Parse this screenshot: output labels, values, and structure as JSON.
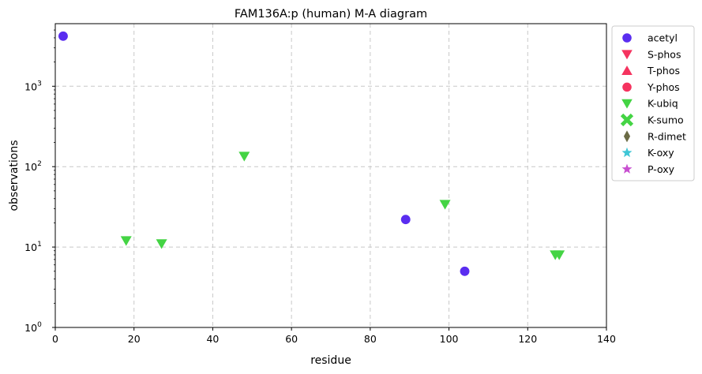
{
  "chart_data": {
    "type": "scatter",
    "title": "FAM136A:p (human) M-A diagram",
    "xlabel": "residue",
    "ylabel": "observations",
    "xlim": [
      0,
      140
    ],
    "ylim": [
      1,
      6000
    ],
    "yscale": "log",
    "grid": true,
    "legend_position": "outside-right",
    "x_ticks": [
      {
        "value": 0,
        "label": "0"
      },
      {
        "value": 20,
        "label": "20"
      },
      {
        "value": 40,
        "label": "40"
      },
      {
        "value": 60,
        "label": "60"
      },
      {
        "value": 80,
        "label": "80"
      },
      {
        "value": 100,
        "label": "100"
      },
      {
        "value": 120,
        "label": "120"
      },
      {
        "value": 140,
        "label": "140"
      }
    ],
    "y_ticks": [
      {
        "value": 1,
        "base": "10",
        "exp": "0"
      },
      {
        "value": 10,
        "base": "10",
        "exp": "1"
      },
      {
        "value": 100,
        "base": "10",
        "exp": "2"
      },
      {
        "value": 1000,
        "base": "10",
        "exp": "3"
      }
    ],
    "series": [
      {
        "name": "acetyl",
        "marker": "circle",
        "color": "#5a2df0",
        "points": [
          {
            "x": 2,
            "y": 4200
          },
          {
            "x": 89,
            "y": 22
          },
          {
            "x": 104,
            "y": 5
          }
        ]
      },
      {
        "name": "S-phos",
        "marker": "triangle-down",
        "color": "#f5335f",
        "points": []
      },
      {
        "name": "T-phos",
        "marker": "triangle-up",
        "color": "#f5335f",
        "points": []
      },
      {
        "name": "Y-phos",
        "marker": "circle",
        "color": "#f5335f",
        "points": []
      },
      {
        "name": "K-ubiq",
        "marker": "triangle-down",
        "color": "#44d444",
        "points": [
          {
            "x": 18,
            "y": 12
          },
          {
            "x": 27,
            "y": 11
          },
          {
            "x": 48,
            "y": 135
          },
          {
            "x": 99,
            "y": 34
          },
          {
            "x": 127,
            "y": 8
          },
          {
            "x": 128,
            "y": 8
          }
        ]
      },
      {
        "name": "K-sumo",
        "marker": "x",
        "color": "#44d444",
        "points": []
      },
      {
        "name": "R-dimet",
        "marker": "diamond",
        "color": "#6b6b45",
        "points": []
      },
      {
        "name": "K-oxy",
        "marker": "star",
        "color": "#3fc6d6",
        "points": []
      },
      {
        "name": "P-oxy",
        "marker": "star",
        "color": "#c84fd0",
        "points": []
      }
    ]
  }
}
